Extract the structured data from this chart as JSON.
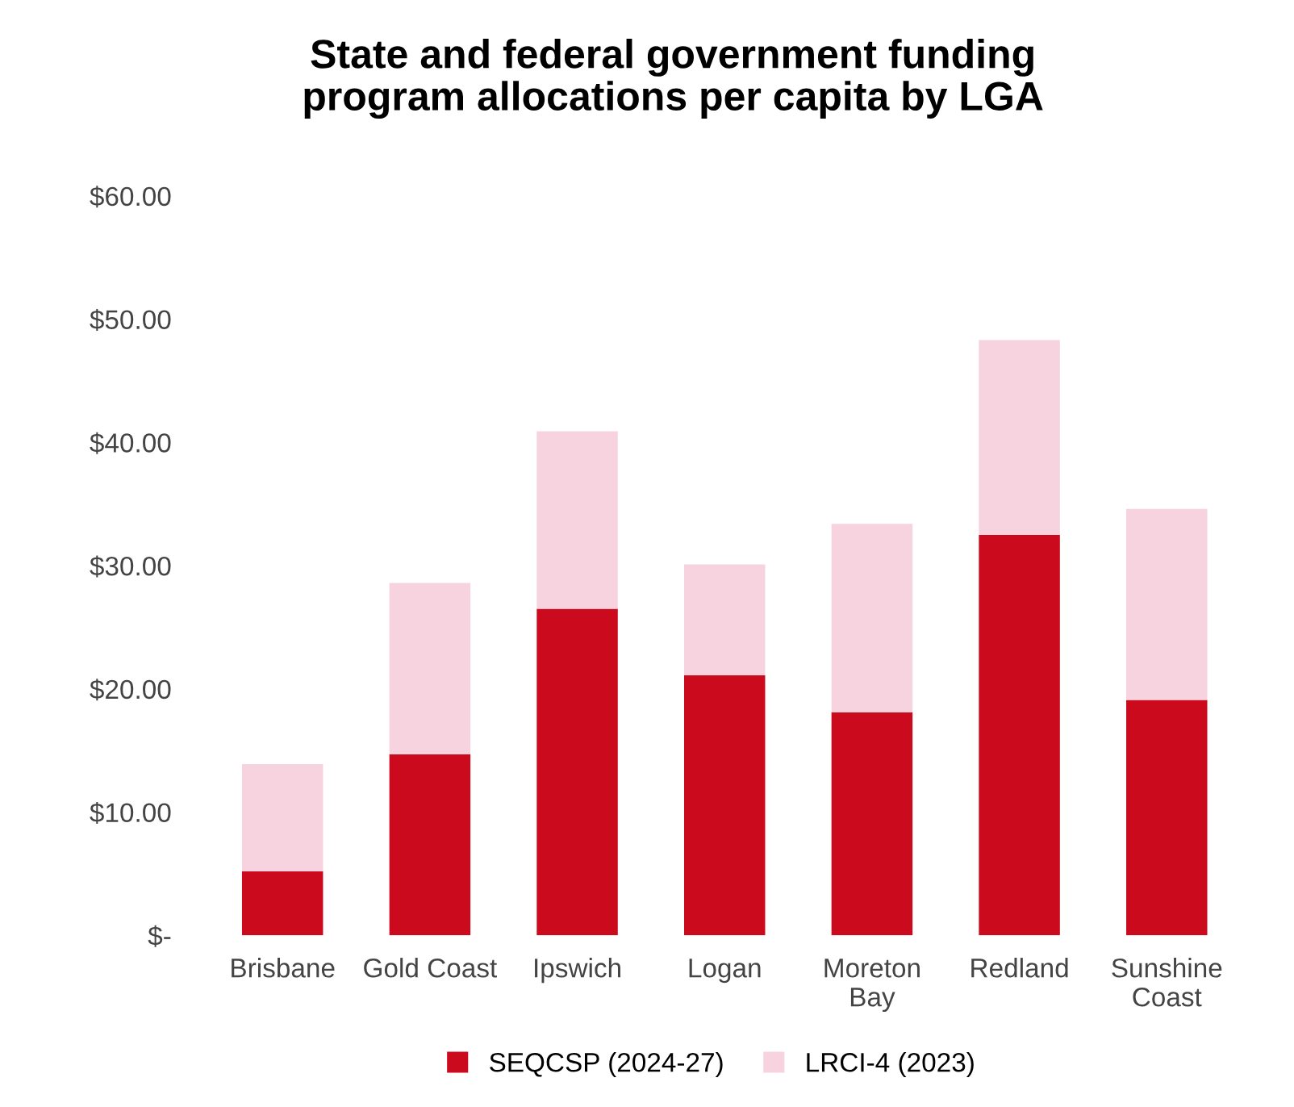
{
  "chart_data": {
    "type": "bar",
    "title": "State and federal government funding\nprogram allocations per capita by LGA",
    "categories": [
      "Brisbane",
      "Gold Coast",
      "Ipswich",
      "Logan",
      "Moreton Bay",
      "Redland",
      "Sunshine Coast"
    ],
    "stacked": true,
    "series": [
      {
        "name": "SEQCSP (2024-27)",
        "color": "#cc0a1e",
        "values": [
          5.2,
          14.7,
          26.5,
          21.1,
          18.1,
          32.5,
          19.1
        ]
      },
      {
        "name": "LRCI-4 (2023)",
        "color": "#f6d3de",
        "values": [
          8.7,
          13.9,
          14.4,
          9.0,
          15.3,
          15.8,
          15.5
        ]
      }
    ],
    "ylim": [
      0,
      60
    ],
    "yticks": [
      {
        "value": 0,
        "label": "$-"
      },
      {
        "value": 10,
        "label": "$10.00"
      },
      {
        "value": 20,
        "label": "$20.00"
      },
      {
        "value": 30,
        "label": "$30.00"
      },
      {
        "value": 40,
        "label": "$40.00"
      },
      {
        "value": 50,
        "label": "$50.00"
      },
      {
        "value": 60,
        "label": "$60.00"
      }
    ],
    "grid": false,
    "legend": "bottom"
  }
}
